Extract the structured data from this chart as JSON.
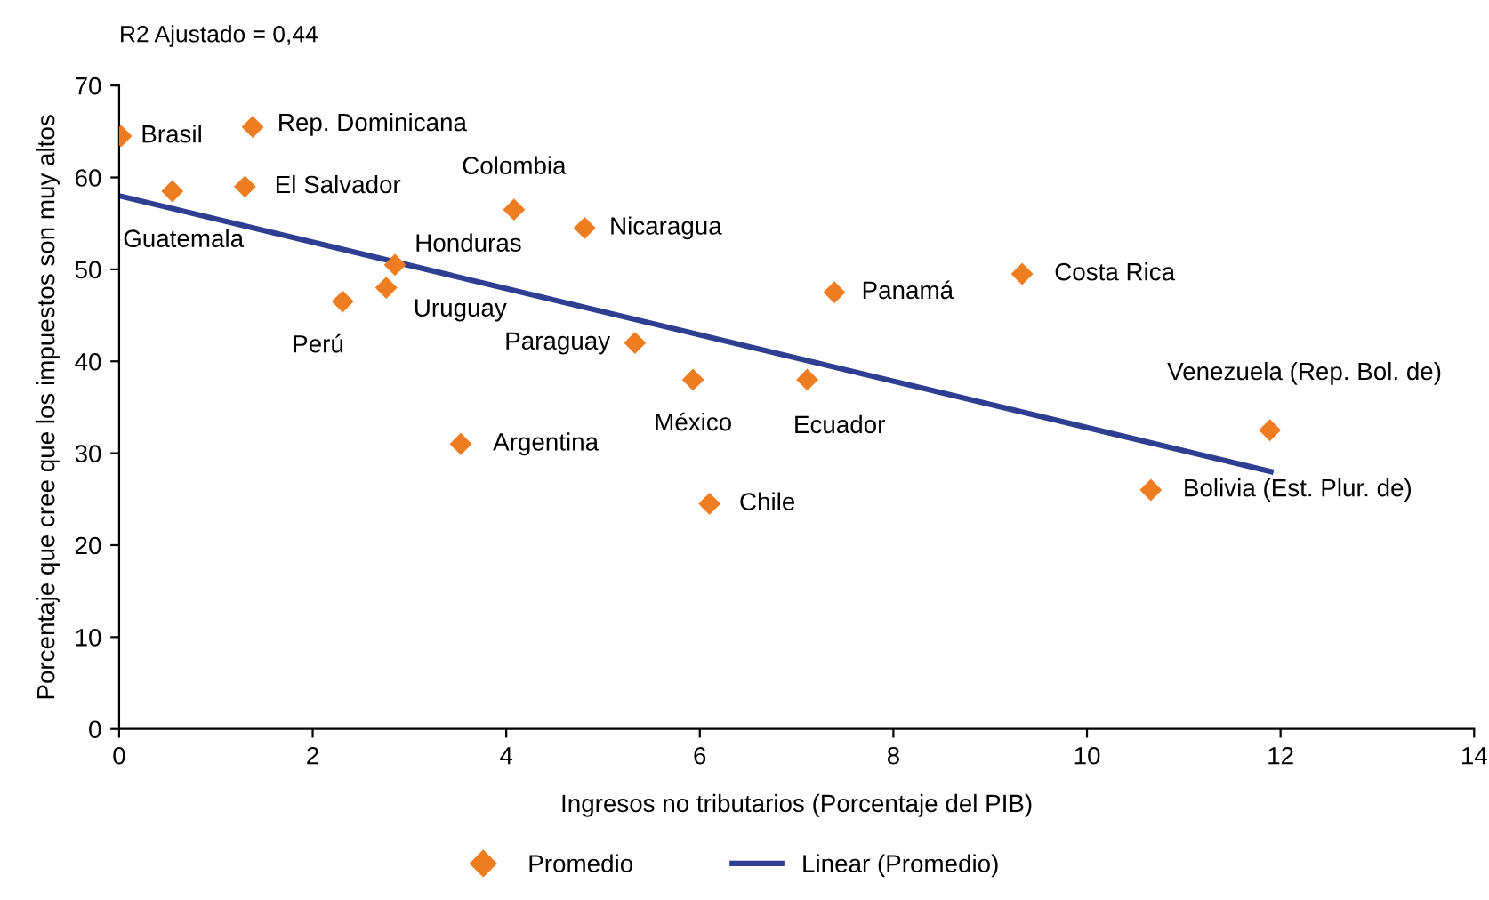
{
  "chart_data": {
    "type": "scatter",
    "xlabel": "Ingresos no tributarios (Porcentaje del PIB)",
    "ylabel": "Porcentaje que cree que los impuestos son muy altos",
    "xlim": [
      0,
      14
    ],
    "xticks": [
      0,
      2,
      4,
      6,
      8,
      10,
      12,
      14
    ],
    "ylim": [
      0,
      70
    ],
    "yticks": [
      0,
      10,
      20,
      30,
      40,
      50,
      60,
      70
    ],
    "grid": false,
    "legend": "bottom",
    "marker": "diamond",
    "series": [
      {
        "name": "Promedio",
        "color": "#ee7d22",
        "x": [
          0.02,
          1.38,
          0.55,
          1.3,
          4.08,
          4.81,
          2.85,
          2.76,
          2.31,
          5.33,
          5.93,
          7.11,
          3.53,
          6.1,
          7.39,
          9.33,
          11.89,
          10.66
        ],
        "values": [
          64.5,
          65.5,
          58.5,
          59.0,
          56.5,
          54.5,
          50.5,
          48.0,
          46.5,
          42.0,
          38.0,
          38.0,
          31.0,
          24.5,
          47.5,
          49.5,
          32.5,
          26.0
        ]
      },
      {
        "name": "Linear (Promedio)",
        "type": "line",
        "color": "#2e3f92",
        "marker": "none",
        "x": [
          0,
          11.9
        ],
        "values": [
          58.0,
          28.0
        ]
      }
    ],
    "annotations": [
      "R2 Ajustado = 0,44",
      {
        "text": "Brasil",
        "x": 0.02,
        "y": 64.5
      },
      {
        "text": "Rep. Dominicana",
        "x": 1.38,
        "y": 65.5
      },
      {
        "text": "Guatemala",
        "x": 0.55,
        "y": 58.5
      },
      {
        "text": "El Salvador",
        "x": 1.3,
        "y": 59.0
      },
      {
        "text": "Colombia",
        "x": 4.08,
        "y": 56.5
      },
      {
        "text": "Nicaragua",
        "x": 4.81,
        "y": 54.5
      },
      {
        "text": "Honduras",
        "x": 2.85,
        "y": 50.5
      },
      {
        "text": "Uruguay",
        "x": 2.76,
        "y": 48.0
      },
      {
        "text": "Perú",
        "x": 2.31,
        "y": 46.5
      },
      {
        "text": "Paraguay",
        "x": 5.33,
        "y": 42.0
      },
      {
        "text": "México",
        "x": 5.93,
        "y": 38.0
      },
      {
        "text": "Ecuador",
        "x": 7.11,
        "y": 38.0
      },
      {
        "text": "Argentina",
        "x": 3.53,
        "y": 31.0
      },
      {
        "text": "Chile",
        "x": 6.1,
        "y": 24.5
      },
      {
        "text": "Panamá",
        "x": 7.39,
        "y": 47.5
      },
      {
        "text": "Costa Rica",
        "x": 9.33,
        "y": 49.5
      },
      {
        "text": "Venezuela (Rep. Bol. de)",
        "x": 11.89,
        "y": 32.5
      },
      {
        "text": "Bolivia (Est. Plur. de)",
        "x": 10.66,
        "y": 26.0
      }
    ]
  }
}
